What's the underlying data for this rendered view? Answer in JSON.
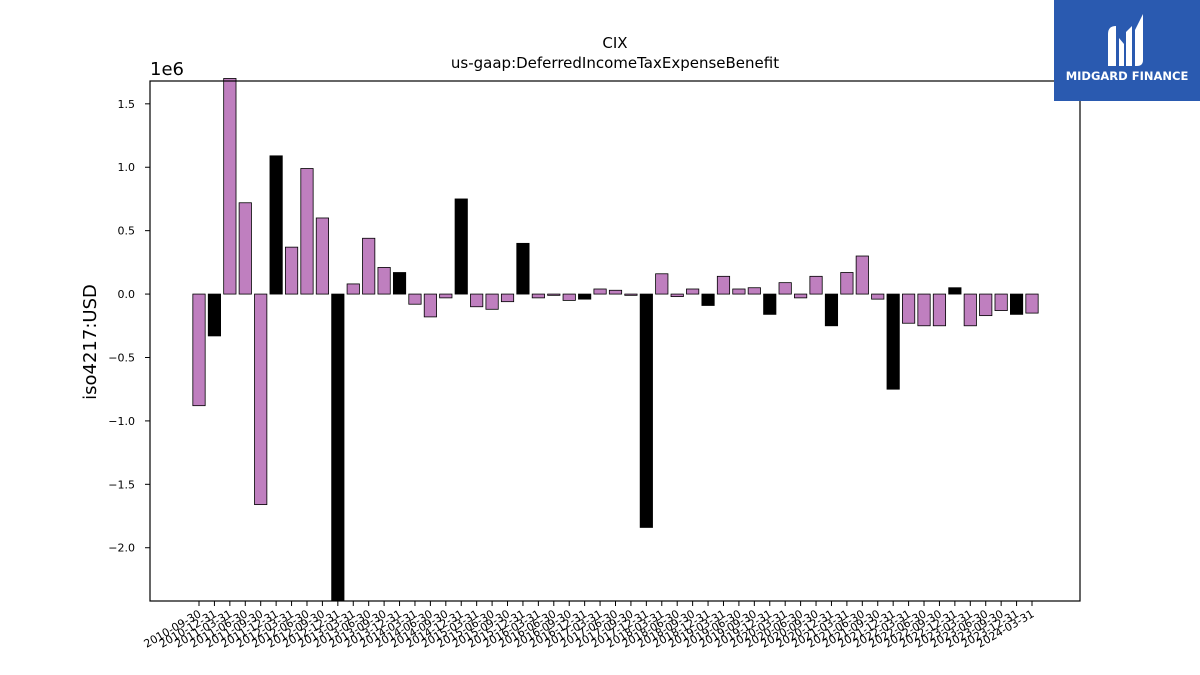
{
  "logo": {
    "text": "MIDGARD FINANCE",
    "background": "#2a5ab0"
  },
  "chart_data": {
    "type": "bar",
    "title": "CIX",
    "subtitle": "us-gaap:DeferredIncomeTaxExpenseBenefit",
    "ylabel": "iso4217:USD",
    "xlabel": "",
    "offset_label": "1e6",
    "ylim": [
      -2.42,
      1.68
    ],
    "yticks": [
      -2.0,
      -1.5,
      -1.0,
      -0.5,
      0.0,
      0.5,
      1.0,
      1.5
    ],
    "ytick_labels": [
      "−2.0",
      "−1.5",
      "−1.0",
      "−0.5",
      "0.0",
      "0.5",
      "1.0",
      "1.5"
    ],
    "grid": false,
    "colors": {
      "purple": "#bf7fbf",
      "black": "#000000"
    },
    "categories": [
      "2010-09-30",
      "2010-12-31",
      "2011-03-31",
      "2011-06-30",
      "2011-09-30",
      "2011-12-31",
      "2012-03-31",
      "2012-06-30",
      "2012-09-30",
      "2012-12-31",
      "2013-03-31",
      "2013-06-30",
      "2013-09-30",
      "2013-12-31",
      "2014-03-31",
      "2014-06-30",
      "2014-09-30",
      "2014-12-31",
      "2015-03-31",
      "2015-06-30",
      "2015-09-30",
      "2015-12-31",
      "2016-03-31",
      "2016-06-30",
      "2016-09-30",
      "2016-12-31",
      "2017-03-31",
      "2017-06-30",
      "2017-09-30",
      "2017-12-31",
      "2018-03-31",
      "2018-06-30",
      "2018-09-30",
      "2018-12-31",
      "2019-03-31",
      "2019-06-30",
      "2019-09-30",
      "2019-12-31",
      "2020-03-31",
      "2020-06-30",
      "2020-09-30",
      "2020-12-31",
      "2021-03-31",
      "2021-06-30",
      "2021-09-30",
      "2021-12-31",
      "2022-03-31",
      "2022-06-30",
      "2022-09-30",
      "2022-12-31",
      "2023-03-31",
      "2023-06-30",
      "2023-09-30",
      "2023-12-31",
      "2024-03-31"
    ],
    "values": [
      -0.88,
      -0.33,
      1.7,
      0.72,
      -1.66,
      1.09,
      0.37,
      0.99,
      0.6,
      -2.42,
      0.08,
      0.44,
      0.21,
      0.17,
      -0.08,
      -0.18,
      -0.03,
      0.75,
      -0.1,
      -0.12,
      -0.06,
      0.4,
      -0.03,
      -0.01,
      -0.05,
      -0.04,
      0.04,
      0.03,
      -0.01,
      -1.84,
      0.16,
      -0.02,
      0.04,
      -0.09,
      0.14,
      0.04,
      0.05,
      -0.16,
      0.09,
      -0.03,
      0.14,
      -0.25,
      0.17,
      0.3,
      -0.04,
      -0.75,
      -0.23,
      -0.25,
      -0.25,
      0.05,
      -0.25,
      -0.17,
      -0.13,
      -0.16,
      -0.15
    ],
    "bar_colors": [
      "purple",
      "black",
      "purple",
      "purple",
      "purple",
      "black",
      "purple",
      "purple",
      "purple",
      "black",
      "purple",
      "purple",
      "purple",
      "black",
      "purple",
      "purple",
      "purple",
      "black",
      "purple",
      "purple",
      "purple",
      "black",
      "purple",
      "purple",
      "purple",
      "black",
      "purple",
      "purple",
      "purple",
      "black",
      "purple",
      "purple",
      "purple",
      "black",
      "purple",
      "purple",
      "purple",
      "black",
      "purple",
      "purple",
      "purple",
      "black",
      "purple",
      "purple",
      "purple",
      "black",
      "purple",
      "purple",
      "purple",
      "black",
      "purple",
      "purple",
      "purple",
      "black",
      "purple"
    ]
  }
}
